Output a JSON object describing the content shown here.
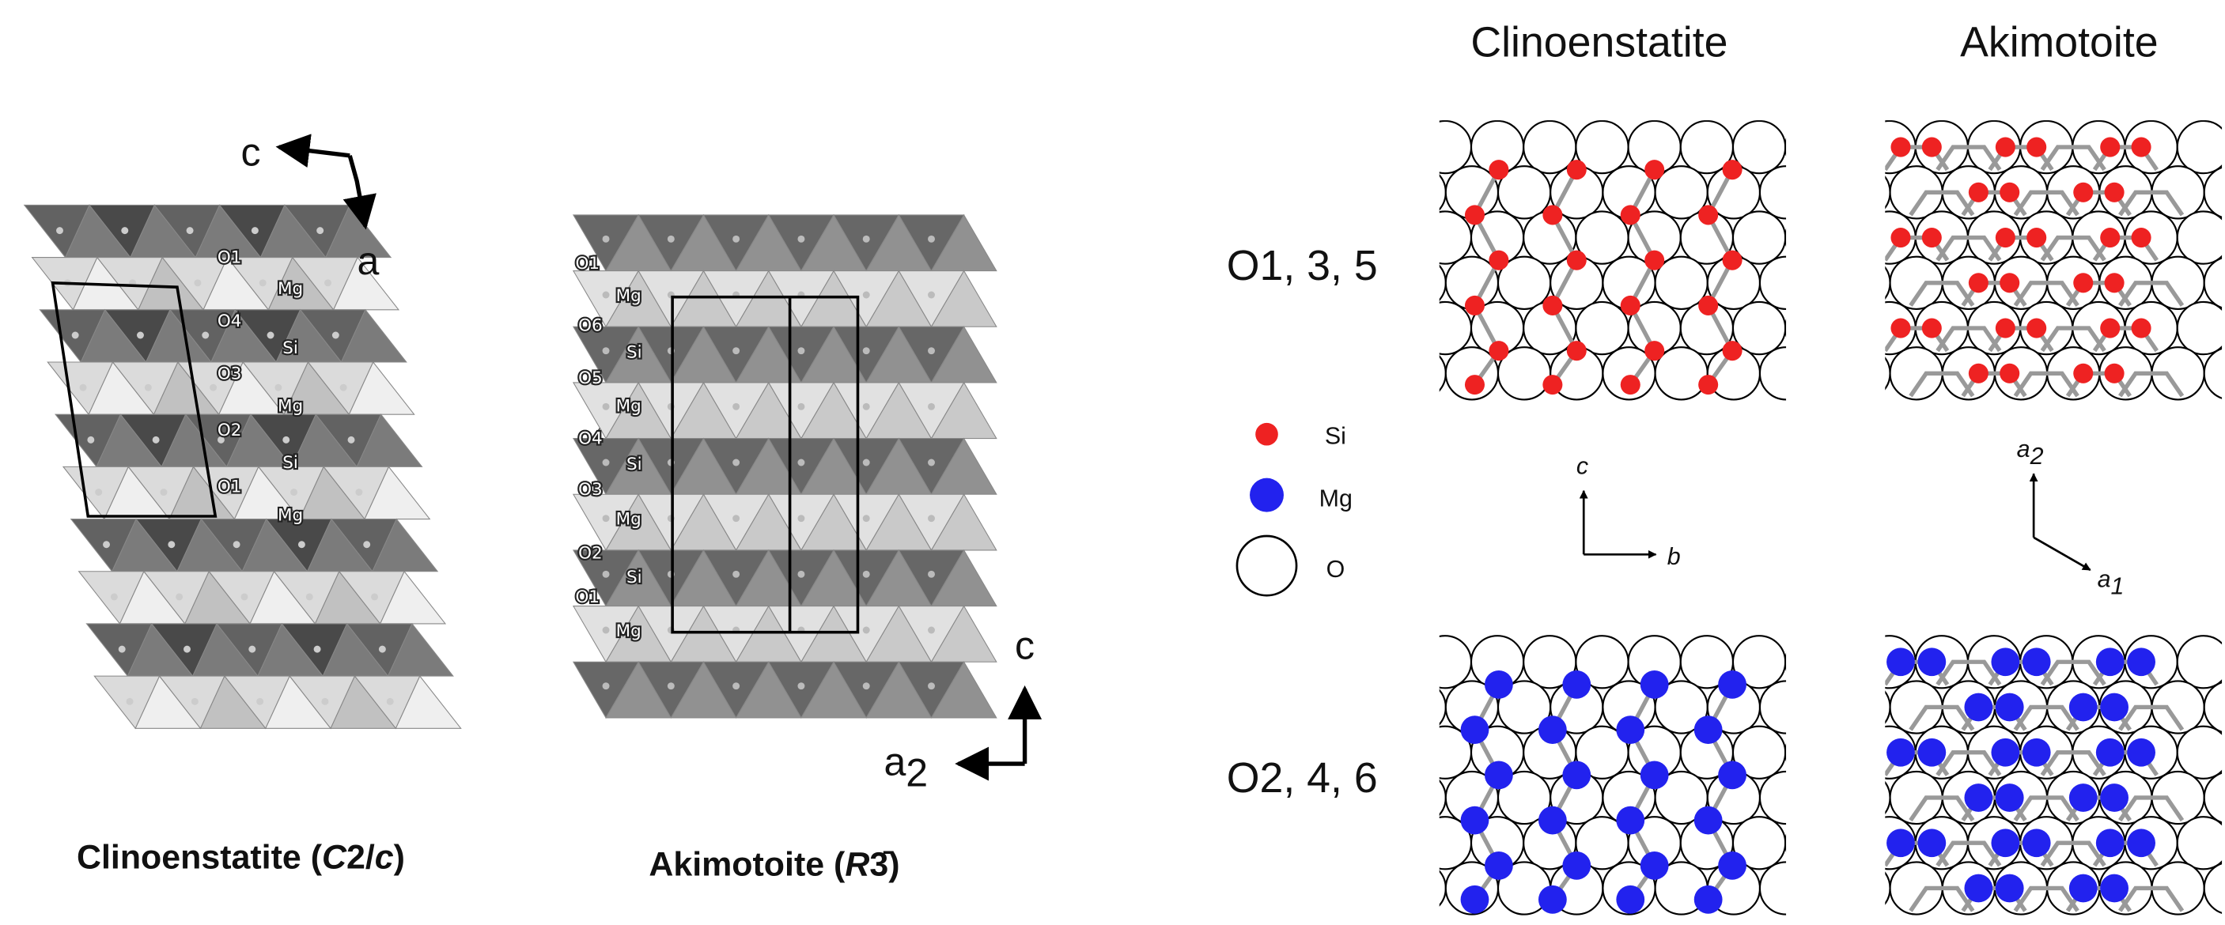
{
  "clinoenstatite_structure": {
    "axis_c": "c",
    "axis_a": "a",
    "layer_labels": [
      "O1",
      "Mg",
      "O4",
      "Si",
      "O3",
      "Mg",
      "O2",
      "Si",
      "O1",
      "Mg"
    ],
    "caption": [
      {
        "text": "Clinoenstatite (",
        "italic": false
      },
      {
        "text": "C",
        "italic": true
      },
      {
        "text": "2/",
        "italic": false
      },
      {
        "text": "c",
        "italic": true
      },
      {
        "text": ")",
        "italic": false
      }
    ]
  },
  "akimotoite_structure": {
    "axis_c": "c",
    "axis_a2": {
      "main": "a",
      "sub": "2"
    },
    "layer_labels": [
      "O1",
      "Mg",
      "O6",
      "Si",
      "O5",
      "Mg",
      "O4",
      "Si",
      "O3",
      "Mg",
      "O2",
      "Si",
      "O1",
      "Mg"
    ],
    "caption": [
      {
        "text": "Akimotoite (",
        "italic": false
      },
      {
        "text": "R",
        "italic": true
      },
      {
        "text": "3̄",
        "italic": false
      },
      {
        "text": ")",
        "italic": false
      }
    ]
  },
  "layers": {
    "columns": [
      "Clinoenstatite",
      "Akimotoite"
    ],
    "rows": [
      "O1, 3, 5",
      "O2, 4, 6"
    ],
    "legend": [
      "Si",
      "Mg",
      "O"
    ],
    "clino_axes": {
      "up": "c",
      "right": "b"
    },
    "akimo_axes": {
      "up": {
        "main": "a",
        "sub": "2"
      },
      "right": {
        "main": "a",
        "sub": "1"
      }
    }
  }
}
